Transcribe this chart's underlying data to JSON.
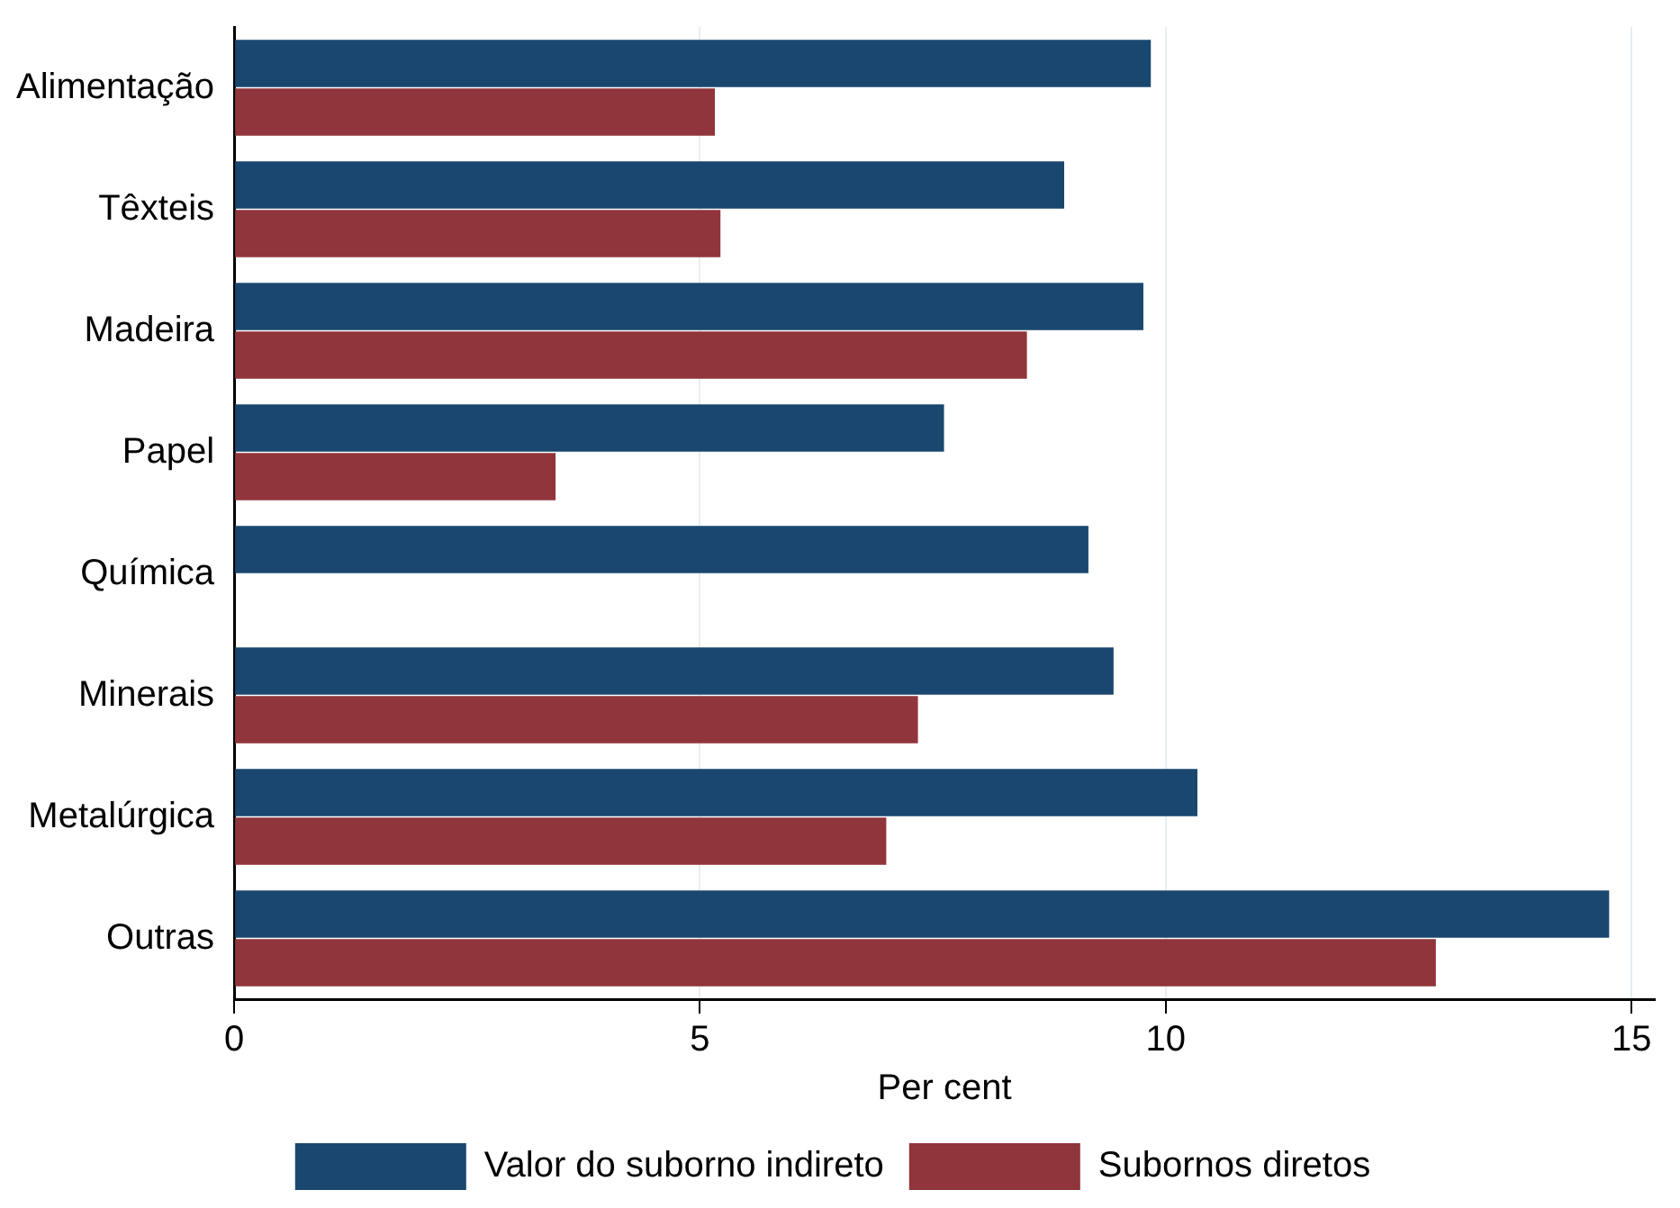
{
  "chart_data": {
    "type": "bar",
    "orientation": "horizontal",
    "xlabel": "Per cent",
    "categories": [
      "Alimentação",
      "Têxteis",
      "Madeira",
      "Papel",
      "Química",
      "Minerais",
      "Metalúrgica",
      "Outras"
    ],
    "series": [
      {
        "name": "Valor do suborno indireto",
        "color": "#1a476f",
        "values": [
          9.84,
          8.91,
          9.76,
          7.62,
          9.17,
          9.44,
          10.34,
          14.76
        ]
      },
      {
        "name": "Subornos diretos",
        "color": "#90353b",
        "values": [
          5.16,
          5.22,
          8.51,
          3.45,
          null,
          7.34,
          7.0,
          12.9
        ]
      }
    ],
    "xlim": [
      0,
      15.25
    ],
    "xticks": [
      0,
      5,
      10,
      15
    ],
    "grid": "x",
    "legend": "bottom"
  }
}
